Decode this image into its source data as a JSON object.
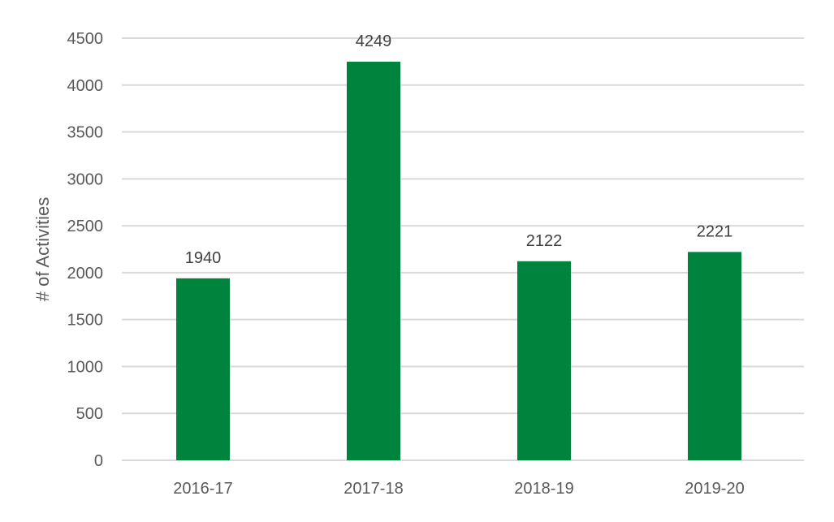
{
  "chart_data": {
    "type": "bar",
    "categories": [
      "2016-17",
      "2017-18",
      "2018-19",
      "2019-20"
    ],
    "values": [
      1940,
      4249,
      2122,
      2221
    ],
    "data_labels": [
      "1940",
      "4249",
      "2122",
      "2221"
    ],
    "title": "",
    "xlabel": "",
    "ylabel": "# of Activities",
    "ylim": [
      0,
      4500
    ],
    "yticks": [
      "0",
      "500",
      "1000",
      "1500",
      "2000",
      "2500",
      "3000",
      "3500",
      "4000",
      "4500"
    ],
    "grid": true,
    "legend": "none",
    "bar_color": "#00843D",
    "grid_color": "#D9D9D9"
  }
}
